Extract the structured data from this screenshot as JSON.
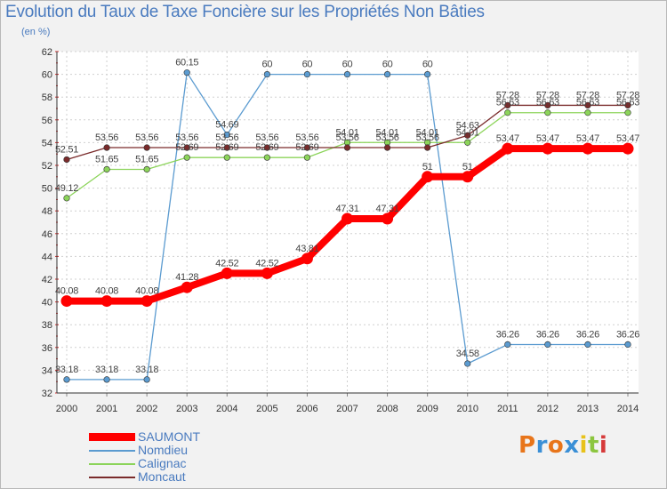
{
  "chart_data": {
    "type": "line",
    "title": "Evolution du Taux de Taxe Foncière sur les Propriétés Non Bâties",
    "subtitle": "(en %)",
    "xlabel": "",
    "ylabel": "",
    "x": [
      "2000",
      "2001",
      "2002",
      "2003",
      "2004",
      "2005",
      "2006",
      "2007",
      "2008",
      "2009",
      "2010",
      "2011",
      "2012",
      "2013",
      "2014"
    ],
    "yticks": [
      "32",
      "34",
      "36",
      "38",
      "40",
      "42",
      "44",
      "46",
      "48",
      "50",
      "52",
      "54",
      "56",
      "58",
      "60",
      "62"
    ],
    "ylim": [
      32,
      62
    ],
    "grid": true,
    "legend_position": "bottom-left",
    "series": [
      {
        "name": "SAUMONT",
        "color": "#ff0000",
        "values": [
          40.08,
          40.08,
          40.08,
          41.28,
          42.52,
          42.52,
          43.81,
          47.31,
          47.31,
          51,
          51,
          53.47,
          53.47,
          53.47,
          53.47
        ],
        "labels": [
          "40.08",
          "40.08",
          "40.08",
          "41.28",
          "42.52",
          "42.52",
          "43.81",
          "47.31",
          "47.31",
          "51",
          "51",
          "53.47",
          "53.47",
          "53.47",
          "53.47"
        ]
      },
      {
        "name": "Nomdieu",
        "color": "#5b9bd0",
        "values": [
          33.18,
          33.18,
          33.18,
          60.15,
          54.69,
          60,
          60,
          60,
          60,
          60,
          34.58,
          36.26,
          36.26,
          36.26,
          36.26
        ],
        "labels": [
          "33.18",
          "33.18",
          "33.18",
          "60.15",
          "54.69",
          "60",
          "60",
          "60",
          "60",
          "60",
          "34.58",
          "36.26",
          "36.26",
          "36.26",
          "36.26"
        ]
      },
      {
        "name": "Calignac",
        "color": "#8cd45a",
        "values": [
          49.12,
          51.65,
          51.65,
          52.69,
          52.69,
          52.69,
          52.69,
          54.01,
          54.01,
          54.01,
          54.01,
          56.63,
          56.63,
          56.63,
          56.63
        ],
        "labels": [
          "49.12",
          "51.65",
          "51.65",
          "52.69",
          "52.69",
          "52.69",
          "52.69",
          "54.01",
          "54.01",
          "54.01",
          "54.01",
          "56.63",
          "56.63",
          "56.63",
          "56.63"
        ]
      },
      {
        "name": "Moncaut",
        "color": "#7a2b2b",
        "values": [
          52.51,
          53.56,
          53.56,
          53.56,
          53.56,
          53.56,
          53.56,
          53.56,
          53.56,
          53.56,
          54.63,
          57.28,
          57.28,
          57.28,
          57.28
        ],
        "labels": [
          "52.51",
          "53.56",
          "53.56",
          "53.56",
          "53.56",
          "53.56",
          "53.56",
          "53.56",
          "53.56",
          "53.56",
          "54.63",
          "57.28",
          "57.28",
          "57.28",
          "57.28"
        ]
      }
    ]
  },
  "logo": {
    "text": "Proxiti",
    "colors": [
      "#e8751a",
      "#3a8fd6",
      "#e8751a",
      "#3a8fd6",
      "#e8c21a",
      "#8cc63f",
      "#d63a3a"
    ]
  }
}
